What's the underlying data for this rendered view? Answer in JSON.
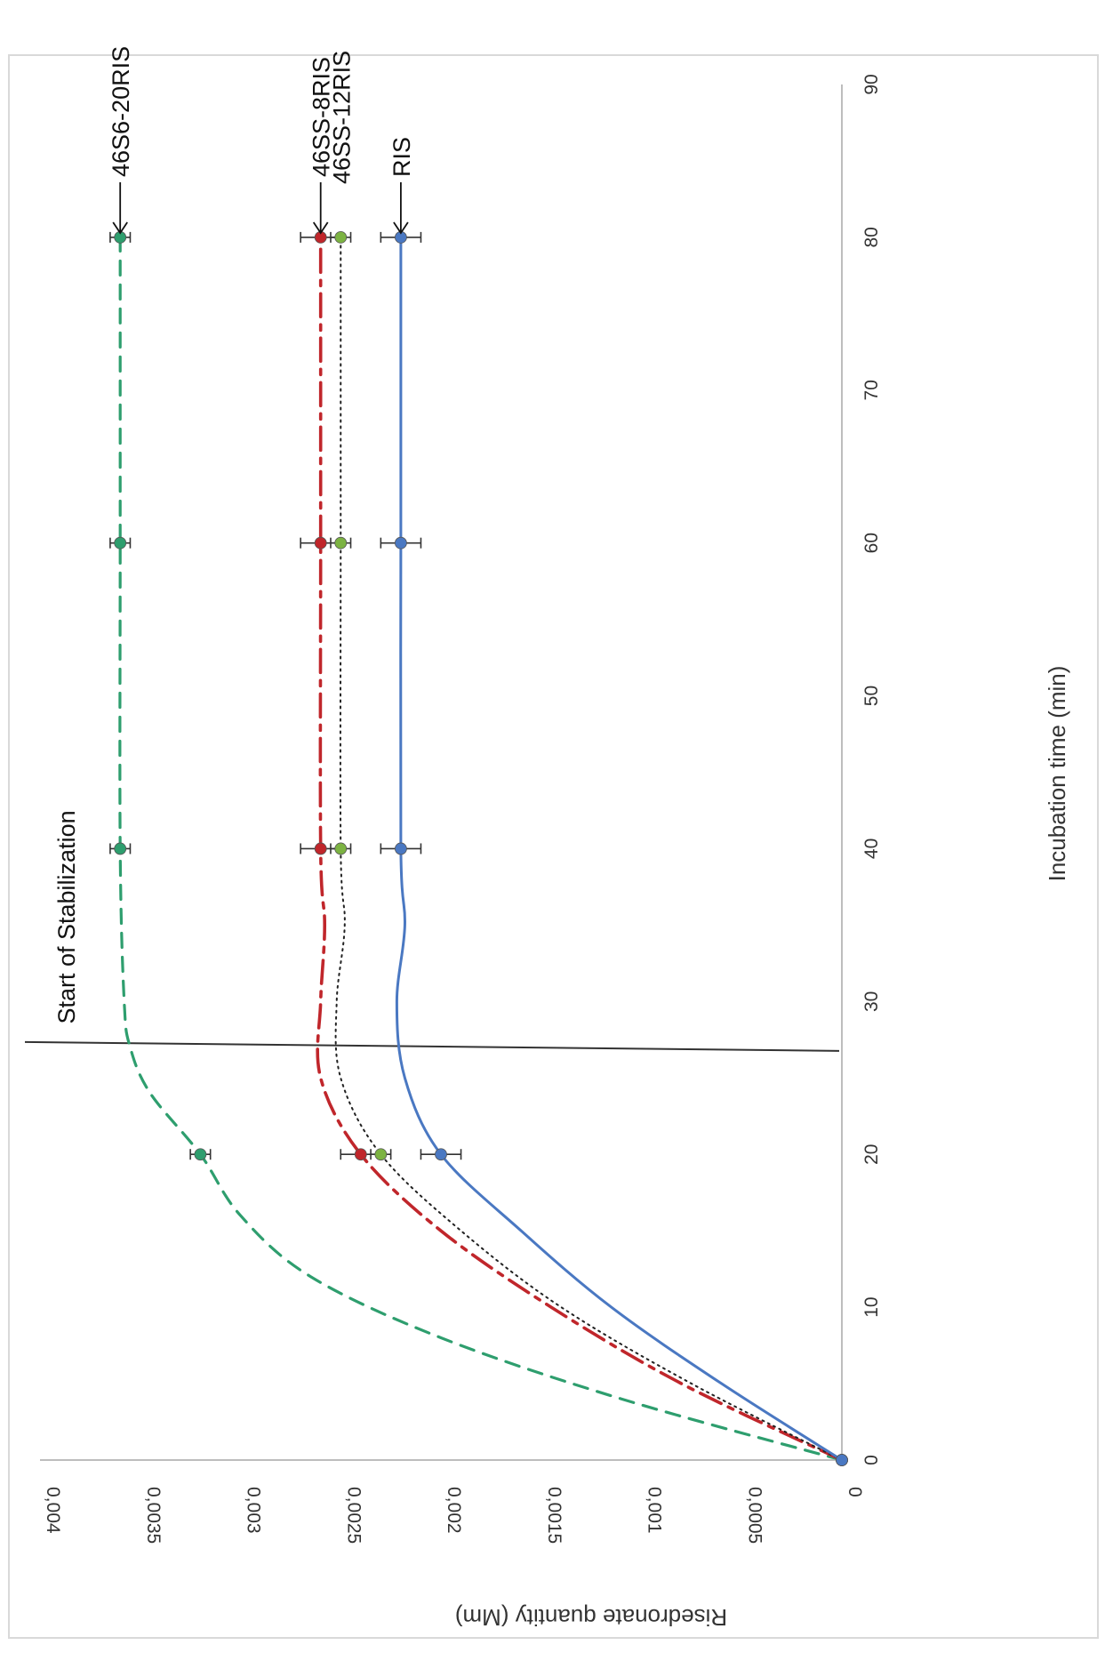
{
  "chart_data": {
    "type": "line",
    "orientation": "rotated-90-clockwise",
    "xlabel": "Incubation time (min)",
    "ylabel": "Risedronate quantity  (Mm)",
    "xlim": [
      0,
      90
    ],
    "ylim": [
      0,
      0.004
    ],
    "x_ticks": [
      "0",
      "10",
      "20",
      "30",
      "40",
      "50",
      "60",
      "70",
      "80",
      "90"
    ],
    "y_ticks": [
      "0",
      "0,0005",
      "0,001",
      "0,0015",
      "0,002",
      "0,0025",
      "0,003",
      "0,0035",
      "0,004"
    ],
    "grid": false,
    "legend": "none",
    "annotations": [
      {
        "text": "Start of Stabilization",
        "x": 27
      }
    ],
    "series": [
      {
        "name": "46S6-20RIS",
        "color": "#2E9E6E",
        "line_style": "dashed",
        "x": [
          0,
          20,
          40,
          60,
          80
        ],
        "y": [
          0,
          0.0032,
          0.0036,
          0.0036,
          0.0036
        ],
        "error": [
          0,
          5e-05,
          5e-05,
          5e-05,
          5e-05
        ],
        "curve": [
          [
            0,
            0
          ],
          [
            4,
            0.0011
          ],
          [
            8,
            0.002
          ],
          [
            12,
            0.00265
          ],
          [
            16,
            0.003
          ],
          [
            20,
            0.0032
          ],
          [
            24,
            0.00345
          ],
          [
            27,
            0.00355
          ],
          [
            30,
            0.00358
          ],
          [
            40,
            0.0036
          ],
          [
            60,
            0.0036
          ],
          [
            80,
            0.0036
          ]
        ]
      },
      {
        "name": "46SS-8RIS",
        "color": "#C0262B",
        "line_style": "dash-dot",
        "x": [
          0,
          20,
          40,
          60,
          80
        ],
        "y": [
          0,
          0.0024,
          0.0026,
          0.0026,
          0.0026
        ],
        "error": [
          0,
          0.0001,
          0.0001,
          0.0001,
          0.0001
        ],
        "curve": [
          [
            0,
            0
          ],
          [
            5,
            0.0008
          ],
          [
            10,
            0.00145
          ],
          [
            15,
            0.002
          ],
          [
            20,
            0.0024
          ],
          [
            25,
            0.0026
          ],
          [
            30,
            0.0026
          ],
          [
            35,
            0.00258
          ],
          [
            40,
            0.0026
          ],
          [
            60,
            0.0026
          ],
          [
            80,
            0.0026
          ]
        ]
      },
      {
        "name": "46SS-12RIS",
        "color": "#222222",
        "marker_color": "#7CB342",
        "line_style": "dotted",
        "x": [
          0,
          20,
          40,
          60,
          80
        ],
        "y": [
          0,
          0.0023,
          0.0025,
          0.0025,
          0.0025
        ],
        "error": [
          0,
          5e-05,
          5e-05,
          5e-05,
          5e-05
        ],
        "curve": [
          [
            0,
            0
          ],
          [
            5,
            0.00075
          ],
          [
            10,
            0.0014
          ],
          [
            15,
            0.0019
          ],
          [
            20,
            0.0023
          ],
          [
            25,
            0.0025
          ],
          [
            30,
            0.00252
          ],
          [
            35,
            0.00248
          ],
          [
            40,
            0.0025
          ],
          [
            60,
            0.0025
          ],
          [
            80,
            0.0025
          ]
        ]
      },
      {
        "name": "RIS",
        "color": "#4A78C2",
        "line_style": "solid",
        "x": [
          0,
          20,
          40,
          60,
          80
        ],
        "y": [
          0,
          0.002,
          0.0022,
          0.0022,
          0.0022
        ],
        "error": [
          0,
          0.0001,
          0.0001,
          0.0001,
          0.0001
        ],
        "curve": [
          [
            0,
            0
          ],
          [
            5,
            0.0006
          ],
          [
            10,
            0.00115
          ],
          [
            15,
            0.0016
          ],
          [
            20,
            0.002
          ],
          [
            25,
            0.00218
          ],
          [
            30,
            0.00222
          ],
          [
            35,
            0.00218
          ],
          [
            40,
            0.0022
          ],
          [
            60,
            0.0022
          ],
          [
            80,
            0.0022
          ]
        ]
      }
    ]
  }
}
